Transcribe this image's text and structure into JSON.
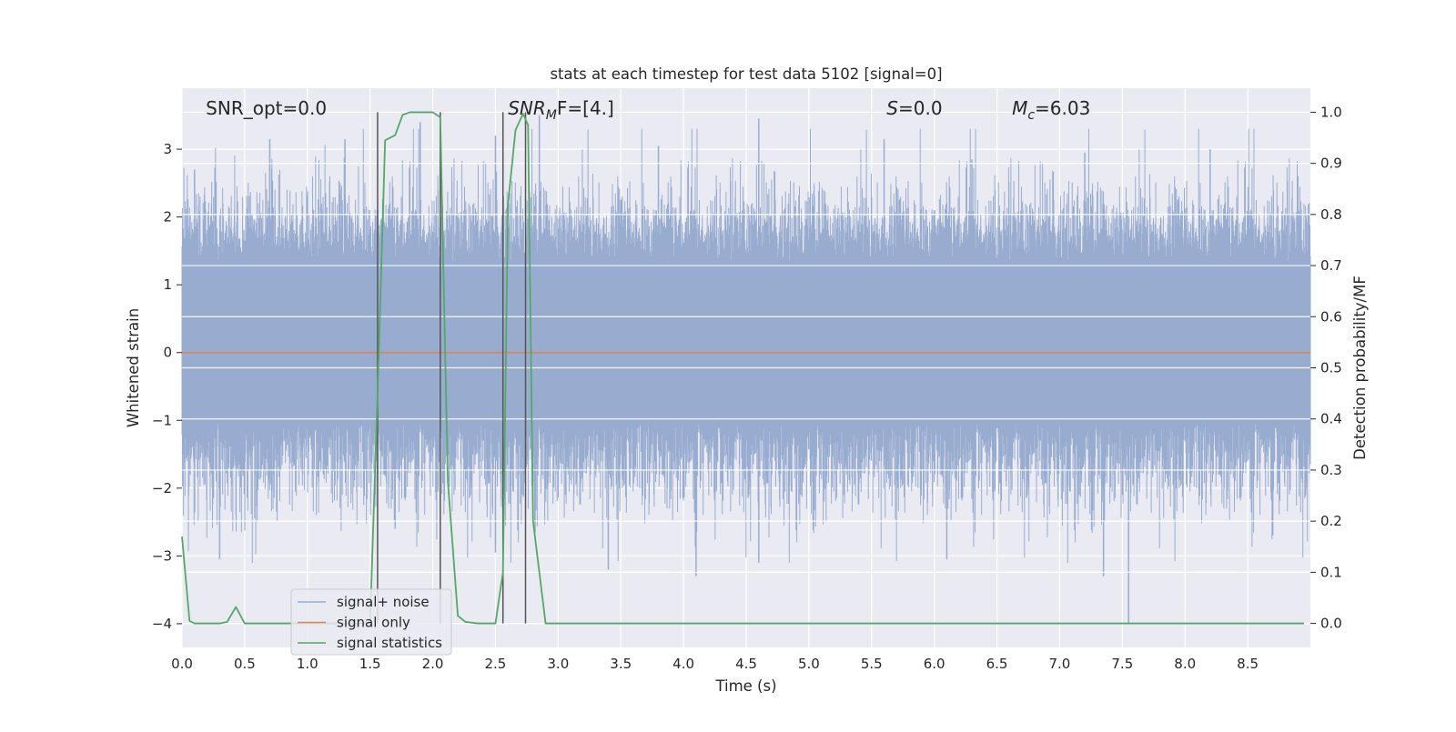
{
  "chart_data": {
    "type": "line",
    "title": "stats at each timestep for test data 5102 [signal=0]",
    "xlabel": "Time (s)",
    "ylabel": "Whitened strain",
    "y2label": "Detection probability/MF",
    "xlim": [
      0.0,
      9.0
    ],
    "ylim": [
      -4.35,
      3.9
    ],
    "y2lim": [
      -0.047,
      1.047
    ],
    "xticks": [
      "0.0",
      "0.5",
      "1.0",
      "1.5",
      "2.0",
      "2.5",
      "3.0",
      "3.5",
      "4.0",
      "4.5",
      "5.0",
      "5.5",
      "6.0",
      "6.5",
      "7.0",
      "7.5",
      "8.0",
      "8.5"
    ],
    "yticks": [
      "3",
      "2",
      "1",
      "0",
      "−1",
      "−2",
      "−3",
      "−4"
    ],
    "y2ticks": [
      "1.0",
      "0.9",
      "0.8",
      "0.7",
      "0.6",
      "0.5",
      "0.4",
      "0.3",
      "0.2",
      "0.1",
      "0.0"
    ],
    "grid": true,
    "legend_position": "lower-left",
    "annotations": {
      "snr_opt": "SNR_opt=0.0",
      "snr_mf_main": "SNR",
      "snr_mf_sub": "M",
      "snr_mf_rest": "F=[4.]",
      "s_main": "S",
      "s_rest": "=0.0",
      "mc_main": "M",
      "mc_sub": "c",
      "mc_rest": "=6.03"
    },
    "series": [
      {
        "name": "signal+ noise",
        "color": "#98acd0",
        "note": "whitened noise, approx. envelope values (upper/lower extents of fill)",
        "upper_peaks": [
          [
            0.1,
            2.7
          ],
          [
            0.7,
            3.15
          ],
          [
            1.3,
            3.15
          ],
          [
            1.9,
            3.4
          ],
          [
            2.5,
            3.2
          ],
          [
            2.85,
            3.5
          ],
          [
            3.8,
            3.05
          ],
          [
            4.6,
            3.45
          ],
          [
            5.6,
            3.15
          ],
          [
            6.3,
            2.85
          ],
          [
            7.2,
            2.95
          ],
          [
            8.2,
            3.0
          ],
          [
            8.9,
            2.6
          ]
        ],
        "lower_peaks": [
          [
            0.3,
            -3.05
          ],
          [
            1.7,
            -2.6
          ],
          [
            2.5,
            -2.95
          ],
          [
            3.4,
            -3.2
          ],
          [
            4.1,
            -3.3
          ],
          [
            4.6,
            -3.1
          ],
          [
            6.1,
            -3.05
          ],
          [
            7.35,
            -3.3
          ],
          [
            7.55,
            -4.0
          ],
          [
            8.7,
            -2.7
          ]
        ]
      },
      {
        "name": "signal only",
        "color": "#dd8452",
        "x": [
          0.0,
          9.0
        ],
        "y": [
          0.0,
          0.0
        ]
      },
      {
        "name": "signal statistics",
        "color": "#55a868",
        "axis": "right",
        "x": [
          0.0,
          0.06,
          0.1,
          0.2,
          0.3,
          0.36,
          0.43,
          0.5,
          1.0,
          1.5,
          1.56,
          1.62,
          1.7,
          1.76,
          1.82,
          1.9,
          2.0,
          2.06,
          2.12,
          2.2,
          2.26,
          2.36,
          2.46,
          2.5,
          2.56,
          2.6,
          2.66,
          2.72,
          2.76,
          2.8,
          2.9,
          3.0,
          4.0,
          5.0,
          6.0,
          7.0,
          8.0,
          8.95
        ],
        "y": [
          0.17,
          0.005,
          0.0,
          0.0,
          0.0,
          0.003,
          0.032,
          0.0,
          0.0,
          0.0,
          0.45,
          0.945,
          0.955,
          0.995,
          1.0,
          1.0,
          1.0,
          0.99,
          0.28,
          0.015,
          0.003,
          0.0,
          0.0,
          0.0,
          0.1,
          0.82,
          0.965,
          0.997,
          0.975,
          0.2,
          0.0,
          0.0,
          0.0,
          0.0,
          0.0,
          0.0,
          0.0,
          0.0
        ]
      }
    ],
    "vertical_lines": [
      1.56,
      2.06,
      2.56,
      2.74
    ]
  }
}
